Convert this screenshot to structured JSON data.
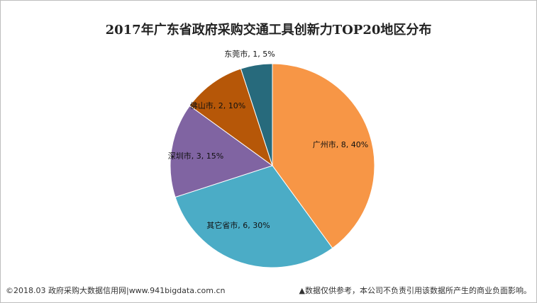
{
  "chart_data": {
    "type": "pie",
    "title": "2017年广东省政府采购交通工具创新力TOP20地区分布",
    "slices": [
      {
        "label": "广州市",
        "value": 8,
        "percent": "40%",
        "color": "#F79646"
      },
      {
        "label": "其它省市",
        "value": 6,
        "percent": "30%",
        "color": "#4BACC6"
      },
      {
        "label": "深圳市",
        "value": 3,
        "percent": "15%",
        "color": "#8064A2"
      },
      {
        "label": "佛山市",
        "value": 2,
        "percent": "10%",
        "color": "#B65708"
      },
      {
        "label": "东莞市",
        "value": 1,
        "percent": "5%",
        "color": "#276A7C"
      }
    ],
    "start_angle": "top",
    "direction": "clockwise",
    "legend": "none"
  },
  "footer": {
    "left": "©2018.03 政府采购大数据信用网|www.941bigdata.com.cn",
    "right": "▲数据仅供参考，本公司不负责引用该数据所产生的商业负面影响。"
  }
}
